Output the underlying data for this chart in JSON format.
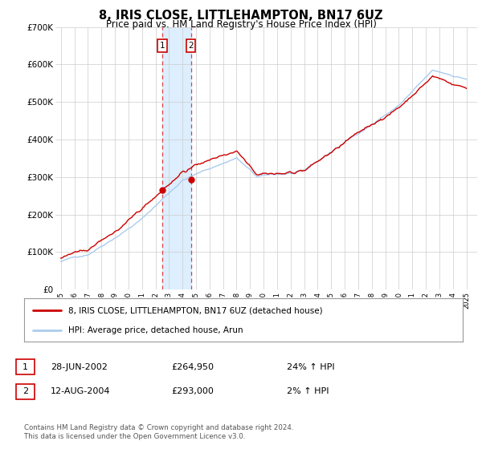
{
  "title": "8, IRIS CLOSE, LITTLEHAMPTON, BN17 6UZ",
  "subtitle": "Price paid vs. HM Land Registry's House Price Index (HPI)",
  "ylim": [
    0,
    700000
  ],
  "yticks": [
    0,
    100000,
    200000,
    300000,
    400000,
    500000,
    600000,
    700000
  ],
  "ytick_labels": [
    "£0",
    "£100K",
    "£200K",
    "£300K",
    "£400K",
    "£500K",
    "£600K",
    "£700K"
  ],
  "bg_color": "#ffffff",
  "plot_bg_color": "#ffffff",
  "grid_color": "#cccccc",
  "line1_color": "#cc0000",
  "line2_color": "#aaccee",
  "transaction1_date": "28-JUN-2002",
  "transaction1_price": 264950,
  "transaction1_pct": "24%",
  "transaction2_date": "12-AUG-2004",
  "transaction2_price": 293000,
  "transaction2_pct": "2%",
  "legend1_label": "8, IRIS CLOSE, LITTLEHAMPTON, BN17 6UZ (detached house)",
  "legend2_label": "HPI: Average price, detached house, Arun",
  "footnote": "Contains HM Land Registry data © Crown copyright and database right 2024.\nThis data is licensed under the Open Government Licence v3.0.",
  "highlight_shade_color": "#ddeeff",
  "marker1_year": 2002.497,
  "marker1_y": 264950,
  "marker2_year": 2004.617,
  "marker2_y": 293000,
  "xmin": 1995.0,
  "xmax": 2025.5,
  "xlim_left": 1994.6,
  "xlim_right": 2025.8
}
